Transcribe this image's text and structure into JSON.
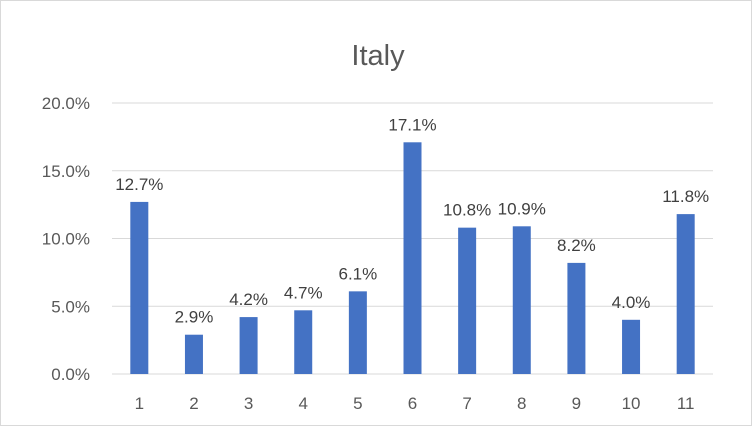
{
  "chart_data": {
    "type": "bar",
    "title": "Italy",
    "xlabel": "",
    "ylabel": "",
    "categories": [
      "1",
      "2",
      "3",
      "4",
      "5",
      "6",
      "7",
      "8",
      "9",
      "10",
      "11"
    ],
    "values": [
      12.7,
      2.9,
      4.2,
      4.7,
      6.1,
      17.1,
      10.8,
      10.9,
      8.2,
      4.0,
      11.8
    ],
    "value_labels": [
      "12.7%",
      "2.9%",
      "4.2%",
      "4.7%",
      "6.1%",
      "17.1%",
      "10.8%",
      "10.9%",
      "8.2%",
      "4.0%",
      "11.8%"
    ],
    "ylim": [
      0,
      20
    ],
    "yticks": [
      0,
      5,
      10,
      15,
      20
    ],
    "ytick_labels": [
      "0.0%",
      "5.0%",
      "10.0%",
      "15.0%",
      "20.0%"
    ],
    "grid": true,
    "legend": "none",
    "bar_color": "#4472c4",
    "grid_color": "#d9d9d9"
  }
}
